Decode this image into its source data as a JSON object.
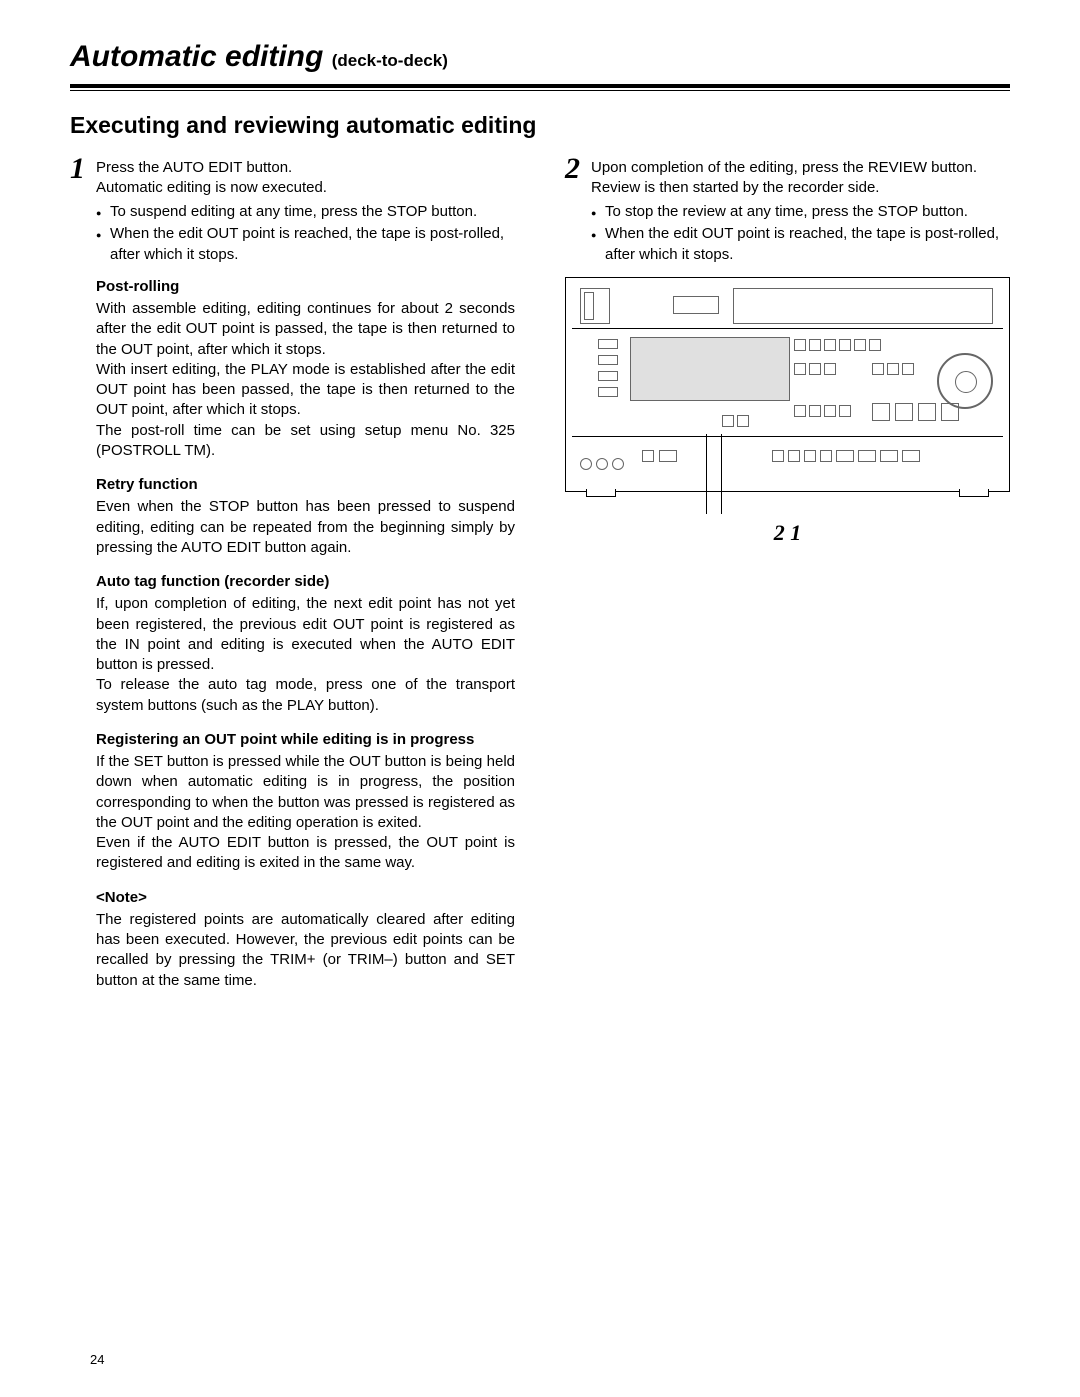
{
  "page_title_main": "Automatic editing",
  "page_title_sub": "(deck-to-deck)",
  "section_heading": "Executing and reviewing automatic editing",
  "step1": {
    "num": "1",
    "intro_line1": "Press the AUTO EDIT button.",
    "intro_line2": "Automatic editing is now executed.",
    "bullets": [
      "To suspend editing at any time, press the STOP button.",
      "When the edit OUT point is reached, the tape is post-rolled, after which it stops."
    ]
  },
  "post_rolling": {
    "head": "Post-rolling",
    "p1": "With assemble editing, editing continues for about 2 seconds after the edit OUT point is passed, the tape is then returned to the OUT point, after which it stops.",
    "p2": "With insert editing, the PLAY mode is established after the edit OUT point has been passed, the tape is then returned to the OUT point, after which it stops.",
    "p3": "The post-roll time can be set using setup menu No. 325 (POSTROLL TM)."
  },
  "retry": {
    "head": "Retry function",
    "p1": "Even when the STOP button has been pressed to suspend editing, editing can be repeated from the beginning simply by pressing the AUTO EDIT button again."
  },
  "autotag": {
    "head": "Auto tag function (recorder side)",
    "p1": "If, upon completion of editing, the next edit point has not yet been registered, the previous edit OUT point is registered as the IN point and editing is executed when the AUTO EDIT button is pressed.",
    "p2": "To release the auto tag mode, press one of the transport system buttons (such as the PLAY button)."
  },
  "reg_out": {
    "head": "Registering an OUT point while editing is in progress",
    "p1": "If the SET button is pressed while the OUT button is being held down when automatic editing is in progress, the position corresponding to when the button was pressed is registered as the OUT point and the editing operation is exited.",
    "p2": "Even if the AUTO EDIT button is pressed, the OUT point is registered and editing is exited in the same way."
  },
  "note": {
    "head": "<Note>",
    "p1": "The registered points are automatically cleared after editing has been executed. However, the previous edit points can be recalled by pressing the TRIM+ (or TRIM–) button and SET button at the same time."
  },
  "step2": {
    "num": "2",
    "intro_line1": "Upon completion of the editing, press the REVIEW button.",
    "intro_line2": "Review is then started by the recorder side.",
    "bullets": [
      "To stop the review at any time, press the STOP button.",
      "When the edit OUT point is reached, the tape is post-rolled, after which it stops."
    ]
  },
  "callout_text": "2 1",
  "page_number": "24"
}
